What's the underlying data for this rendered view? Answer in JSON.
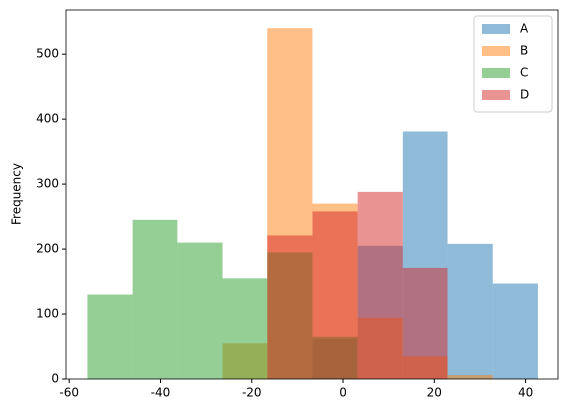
{
  "chart_data": {
    "type": "histogram",
    "ylabel": "Frequency",
    "bins": [
      -56.0,
      -46.1,
      -36.3,
      -26.4,
      -16.6,
      -6.7,
      3.2,
      13.1,
      22.9,
      32.8,
      42.7
    ],
    "series": [
      {
        "name": "A",
        "color": "#1f77b4",
        "values": [
          0,
          0,
          0,
          0,
          0,
          62,
          205,
          381,
          208,
          147
        ]
      },
      {
        "name": "B",
        "color": "#ff7f0e",
        "values": [
          0,
          0,
          0,
          55,
          540,
          270,
          94,
          35,
          6,
          0
        ]
      },
      {
        "name": "C",
        "color": "#2ca02c",
        "values": [
          130,
          245,
          210,
          155,
          195,
          65,
          0,
          0,
          0,
          0
        ]
      },
      {
        "name": "D",
        "color": "#d62728",
        "values": [
          0,
          0,
          0,
          0,
          221,
          258,
          288,
          171,
          0,
          0
        ]
      }
    ],
    "alpha": 0.5,
    "xlim": [
      -60.7,
      47.1
    ],
    "ylim": [
      0,
      568
    ],
    "xticks": [
      -60,
      -40,
      -20,
      0,
      20,
      40
    ],
    "yticks": [
      0,
      100,
      200,
      300,
      400,
      500
    ],
    "legend": "upper right"
  }
}
